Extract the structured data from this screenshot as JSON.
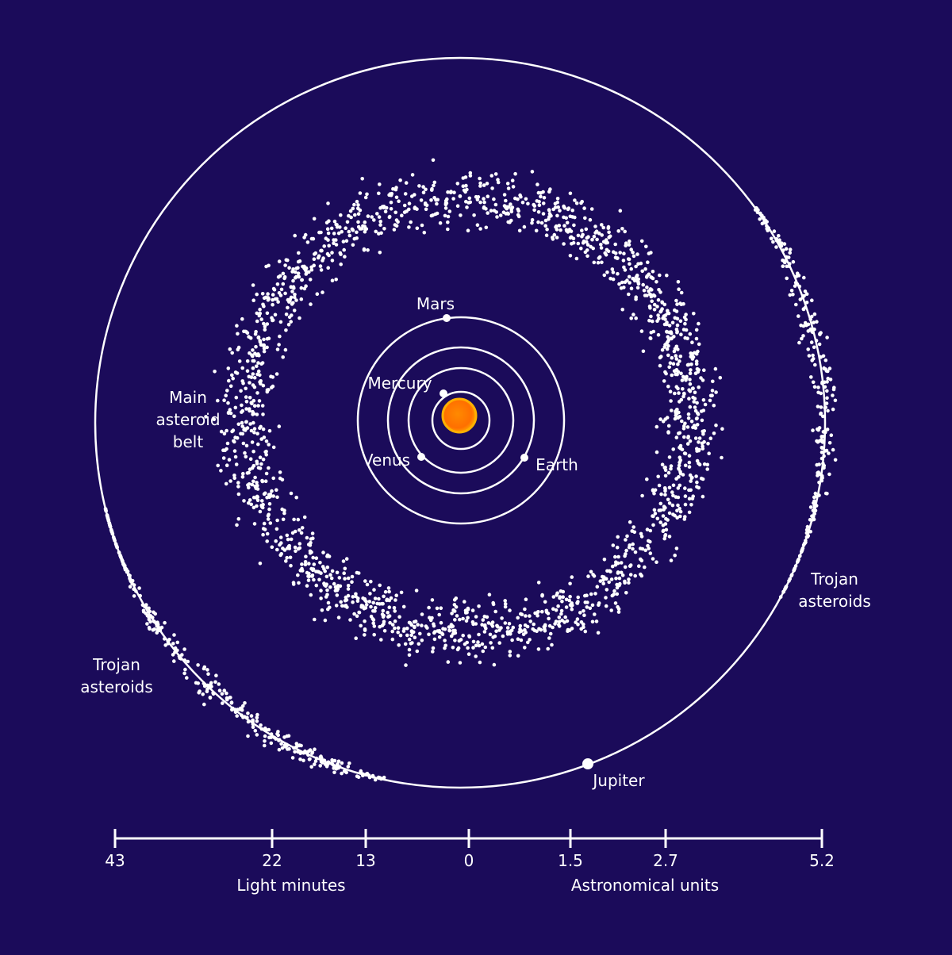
{
  "labels": {
    "sun_planets": {
      "mercury": "Mercury",
      "venus": "Venus",
      "earth": "Earth",
      "mars": "Mars",
      "jupiter": "Jupiter"
    },
    "main_belt": [
      "Main",
      "asteroid",
      "belt"
    ],
    "trojans_left": [
      "Trojan",
      "asteroids"
    ],
    "trojans_right": [
      "Trojan",
      "asteroids"
    ]
  },
  "scale": {
    "ticks": [
      "43",
      "22",
      "13",
      "0",
      "1.5",
      "2.7",
      "5.2"
    ],
    "left_caption": "Light minutes",
    "right_caption": "Astronomical units"
  }
}
